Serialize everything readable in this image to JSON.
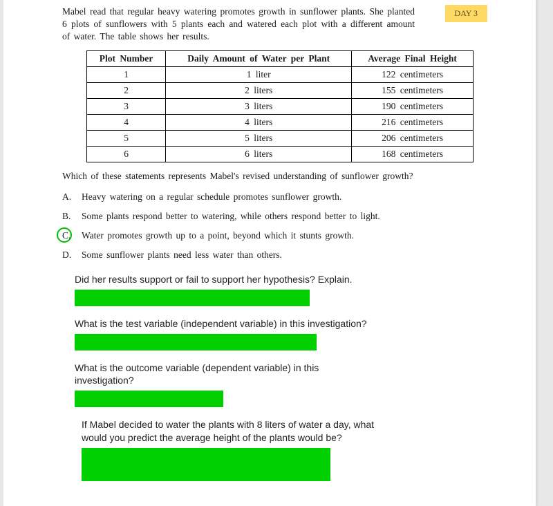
{
  "dayTag": "DAY 3",
  "intro": "Mabel read that regular heavy watering promotes growth in sunflower plants.  She planted 6 plots of sunflowers with 5 plants each and watered each plot with a different amount of water.  The table shows her results.",
  "table": {
    "headers": [
      "Plot  Number",
      "Daily  Amount  of Water  per  Plant",
      "Average  Final  Height"
    ],
    "rows": [
      [
        "1",
        "1  liter",
        "122  centimeters"
      ],
      [
        "2",
        "2  liters",
        "155  centimeters"
      ],
      [
        "3",
        "3  liters",
        "190  centimeters"
      ],
      [
        "4",
        "4  liters",
        "216  centimeters"
      ],
      [
        "5",
        "5  liters",
        "206  centimeters"
      ],
      [
        "6",
        "6  liters",
        "168  centimeters"
      ]
    ]
  },
  "question": "Which of these statements represents Mabel's revised understanding of sunflower growth?",
  "choices": [
    {
      "letter": "A.",
      "text": "Heavy watering on a regular schedule promotes sunflower growth.",
      "circled": false
    },
    {
      "letter": "B.",
      "text": "Some plants respond better to watering, while others respond better to light.",
      "circled": false
    },
    {
      "letter": "C.",
      "text": "Water promotes growth up to a point, beyond which it stunts growth.",
      "circled": true
    },
    {
      "letter": "D.",
      "text": "Some sunflower plants need less water than others.",
      "circled": false
    }
  ],
  "subq1": "Did her results support or fail to support her hypothesis? Explain.",
  "subq2": "What is the test variable (independent variable) in this investigation?",
  "subq3": "What is the outcome variable (dependent variable) in this investigation?",
  "subq4": "If Mabel decided to water the plants with 8 liters of water a day, what would you predict the average height of the plants would be?",
  "colors": {
    "highlight": "#00d000",
    "circle": "#00c000",
    "tagBg": "#ffd966"
  }
}
